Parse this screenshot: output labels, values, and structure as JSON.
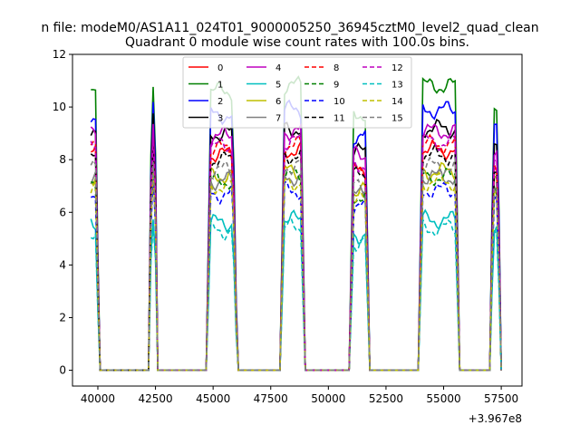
{
  "chart_data": {
    "type": "line",
    "suptitle": "n file: modeM0/AS1A11_024T01_9000005250_36945cztM0_level2_quad_clean",
    "title": "Quadrant 0 module wise count rates with 100.0s bins.",
    "xlabel": "",
    "ylabel": "",
    "offset_text": "+3.967e8",
    "x_offset": 396700000,
    "xlim": [
      38900,
      58400
    ],
    "ylim": [
      -0.6,
      12.0
    ],
    "x_ticks": [
      40000,
      42500,
      45000,
      47500,
      50000,
      52500,
      55000,
      57500
    ],
    "x_tick_labels": [
      "40000",
      "42500",
      "45000",
      "47500",
      "50000",
      "52500",
      "55000",
      "57500"
    ],
    "y_ticks": [
      0,
      2,
      4,
      6,
      8,
      10,
      12
    ],
    "y_tick_labels": [
      "0",
      "2",
      "4",
      "6",
      "8",
      "10",
      "12"
    ],
    "legend_position": "top-center",
    "legend_columns": 4,
    "segments": [
      {
        "x": [
          39700,
          40050
        ],
        "level": 1.0,
        "ramp": "in"
      },
      {
        "x": [
          42200,
          42600
        ],
        "level": 1.0,
        "spike": true
      },
      {
        "x": [
          44700,
          46050
        ],
        "level": 1.0
      },
      {
        "x": [
          47900,
          49000
        ],
        "level": 1.02
      },
      {
        "x": [
          50900,
          51800
        ],
        "level": 0.92
      },
      {
        "x": [
          53900,
          55700
        ],
        "level": 1.02
      },
      {
        "x": [
          57000,
          57500
        ],
        "level": 0.95
      }
    ],
    "series": [
      {
        "name": "0",
        "color": "#ff0000",
        "dash": "solid",
        "base": 8.2
      },
      {
        "name": "1",
        "color": "#008000",
        "dash": "solid",
        "base": 10.6
      },
      {
        "name": "2",
        "color": "#0000ff",
        "dash": "solid",
        "base": 9.7
      },
      {
        "name": "3",
        "color": "#000000",
        "dash": "solid",
        "base": 9.0
      },
      {
        "name": "4",
        "color": "#bf00bf",
        "dash": "solid",
        "base": 8.9
      },
      {
        "name": "5",
        "color": "#00bfbf",
        "dash": "solid",
        "base": 5.6
      },
      {
        "name": "6",
        "color": "#bfbf00",
        "dash": "solid",
        "base": 7.4
      },
      {
        "name": "7",
        "color": "#808080",
        "dash": "solid",
        "base": 7.2
      },
      {
        "name": "8",
        "color": "#ff0000",
        "dash": "dashed",
        "base": 8.4
      },
      {
        "name": "9",
        "color": "#008000",
        "dash": "dashed",
        "base": 7.2
      },
      {
        "name": "10",
        "color": "#0000ff",
        "dash": "dashed",
        "base": 6.7
      },
      {
        "name": "11",
        "color": "#000000",
        "dash": "dashed",
        "base": 8.0
      },
      {
        "name": "12",
        "color": "#bf00bf",
        "dash": "dashed",
        "base": 8.5
      },
      {
        "name": "13",
        "color": "#00bfbf",
        "dash": "dashed",
        "base": 5.3
      },
      {
        "name": "14",
        "color": "#bfbf00",
        "dash": "dashed",
        "base": 7.0
      },
      {
        "name": "15",
        "color": "#808080",
        "dash": "dashed",
        "base": 7.6
      }
    ]
  }
}
